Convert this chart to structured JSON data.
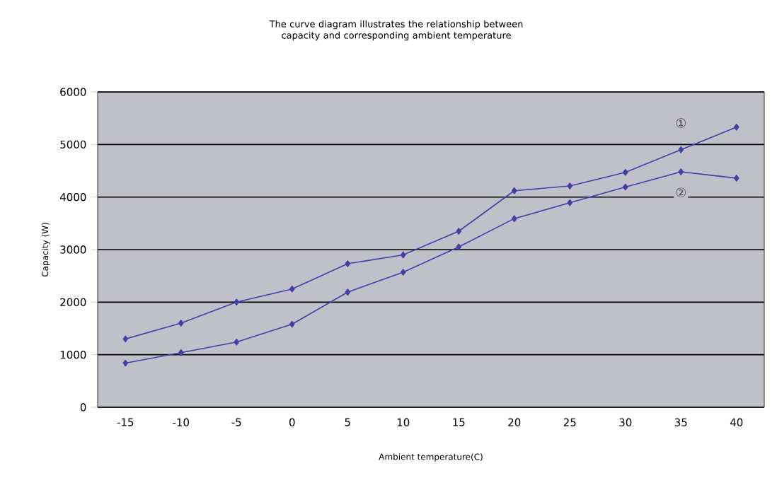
{
  "chart_data": {
    "type": "line",
    "title": "The curve diagram illustrates the relationship between capacity and corresponding ambient temperature",
    "xlabel": "Ambient temperature(C)",
    "ylabel": "Capacity (W)",
    "categories": [
      "-15",
      "-10",
      "-5",
      "0",
      "5",
      "10",
      "15",
      "20",
      "25",
      "30",
      "35",
      "40"
    ],
    "series": [
      {
        "name": "①",
        "color": "#4040a8",
        "values": [
          1300,
          1600,
          2000,
          2250,
          2730,
          2900,
          3350,
          4120,
          4210,
          4470,
          4900,
          5330
        ]
      },
      {
        "name": "②",
        "color": "#4040a8",
        "values": [
          840,
          1040,
          1240,
          1580,
          2190,
          2570,
          3050,
          3590,
          3890,
          4190,
          4480,
          4360
        ]
      }
    ],
    "ylim": [
      0,
      6000
    ],
    "yticks": [
      0,
      1000,
      2000,
      3000,
      4000,
      5000,
      6000
    ],
    "grid": "y",
    "marker": "diamond",
    "line_style": "solid"
  }
}
